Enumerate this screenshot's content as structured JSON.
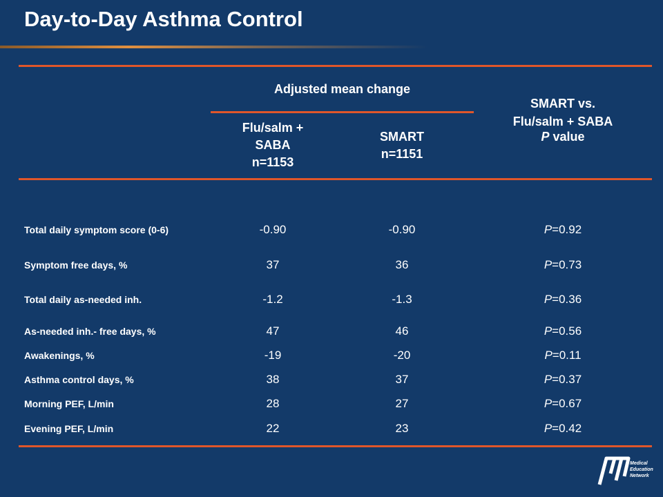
{
  "title": "Day-to-Day Asthma Control",
  "table": {
    "group_header": "Adjusted mean change",
    "columns": [
      [
        "Flu/salm +",
        "SABA",
        "n=1153"
      ],
      [
        "SMART",
        "n=1151"
      ],
      {
        "lines": [
          "SMART vs.",
          "Flu/salm + SABA"
        ],
        "p_label": [
          "P",
          " value"
        ]
      }
    ],
    "rows": [
      {
        "label": "Total daily symptom score (0-6)",
        "flu_salm": "-0.90",
        "smart": "-0.90",
        "p": [
          "P",
          "=0.92"
        ]
      },
      {
        "label": "Symptom free days, %",
        "flu_salm": "37",
        "smart": "36",
        "p": [
          "P",
          "=0.73"
        ]
      },
      {
        "label": "Total daily as-needed inh.",
        "flu_salm": "-1.2",
        "smart": "-1.3",
        "p": [
          "P",
          "=0.36"
        ]
      },
      {
        "label": "As-needed inh.- free days, %",
        "flu_salm": "47",
        "smart": "46",
        "p": [
          "P",
          "=0.56"
        ]
      },
      {
        "label": "Awakenings, %",
        "flu_salm": "-19",
        "smart": "-20",
        "p": [
          "P",
          "=0.11"
        ]
      },
      {
        "label": "Asthma control days, %",
        "flu_salm": "38",
        "smart": "37",
        "p": [
          "P",
          "=0.37"
        ]
      },
      {
        "label": "Morning PEF, L/min",
        "flu_salm": "28",
        "smart": "27",
        "p": [
          "P",
          "=0.67"
        ]
      },
      {
        "label": "Evening PEF, L/min",
        "flu_salm": "22",
        "smart": "23",
        "p": [
          "P",
          "=0.42"
        ]
      }
    ]
  },
  "logo": [
    "Medical",
    "Education",
    "Network"
  ]
}
